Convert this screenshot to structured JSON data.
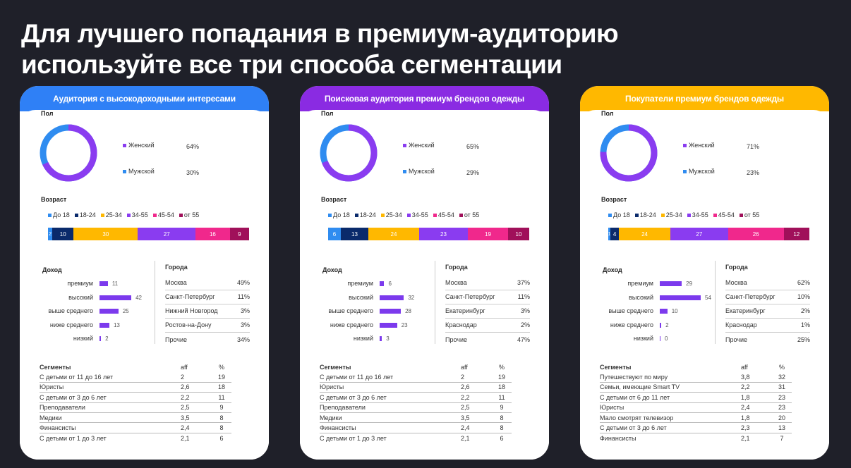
{
  "title": {
    "line1": "Для лучшего попадания в премиум-аудиторию",
    "line2": "используйте все три способа сегментации"
  },
  "colors": {
    "blue": "#2f80f6",
    "purple": "#8a2be2",
    "orange": "#ffb800",
    "navy": "#0a2a6b",
    "pink": "#f0288c",
    "crimson": "#a0105a",
    "light_blue": "#2f8cf0"
  },
  "labels": {
    "gender": "Пол",
    "age": "Возраст",
    "income": "Доход",
    "cities": "Города",
    "segments": "Сегменты",
    "aff": "aff",
    "percent": "%",
    "female": "Женский",
    "male": "Мужской",
    "age_groups": [
      "До 18",
      "18-24",
      "25-34",
      "34-55",
      "45-54",
      "от 55"
    ]
  },
  "cards": [
    {
      "header": "Аудитория с высокодоходными интересами",
      "header_color": "#2f80f6",
      "gender": {
        "female": "64%",
        "male": "30%",
        "female_share": 64,
        "male_share": 30
      },
      "age": [
        2,
        10,
        30,
        27,
        16,
        9
      ],
      "income": [
        {
          "label": "премиум",
          "value": 11
        },
        {
          "label": "высокий",
          "value": 42
        },
        {
          "label": "выше среднего",
          "value": 25
        },
        {
          "label": "ниже среднего",
          "value": 13
        },
        {
          "label": "низкий",
          "value": 2
        }
      ],
      "cities": [
        {
          "name": "Москва",
          "value": "49%"
        },
        {
          "name": "Санкт-Петербург",
          "value": "11%"
        },
        {
          "name": "Нижний Новгород",
          "value": "3%"
        },
        {
          "name": "Ростов-на-Дону",
          "value": "3%"
        },
        {
          "name": "Прочие",
          "value": "34%"
        }
      ],
      "segments": [
        {
          "name": "С детьми от 11 до 16 лет",
          "aff": "2",
          "pct": "19"
        },
        {
          "name": "Юристы",
          "aff": "2,6",
          "pct": "18"
        },
        {
          "name": "С детьми от 3 до 6 лет",
          "aff": "2,2",
          "pct": "11"
        },
        {
          "name": "Преподаватели",
          "aff": "2,5",
          "pct": "9"
        },
        {
          "name": "Медики",
          "aff": "3,5",
          "pct": "8"
        },
        {
          "name": "Финансисты",
          "aff": "2,4",
          "pct": "8"
        },
        {
          "name": "С детьми от 1 до 3 лет",
          "aff": "2,1",
          "pct": "6"
        }
      ]
    },
    {
      "header": "Поисковая аудитория премиум брендов одежды",
      "header_color": "#8a2be2",
      "gender": {
        "female": "65%",
        "male": "29%",
        "female_share": 65,
        "male_share": 29
      },
      "age": [
        6,
        13,
        24,
        23,
        19,
        10
      ],
      "income": [
        {
          "label": "премиум",
          "value": 6
        },
        {
          "label": "высокий",
          "value": 32
        },
        {
          "label": "выше среднего",
          "value": 28
        },
        {
          "label": "ниже среднего",
          "value": 23
        },
        {
          "label": "низкий",
          "value": 3
        }
      ],
      "cities": [
        {
          "name": "Москва",
          "value": "37%"
        },
        {
          "name": "Санкт-Петербург",
          "value": "11%"
        },
        {
          "name": "Екатеринбург",
          "value": "3%"
        },
        {
          "name": "Краснодар",
          "value": "2%"
        },
        {
          "name": "Прочие",
          "value": "47%"
        }
      ],
      "segments": [
        {
          "name": "С детьми от 11 до 16 лет",
          "aff": "2",
          "pct": "19"
        },
        {
          "name": "Юристы",
          "aff": "2,6",
          "pct": "18"
        },
        {
          "name": "С детьми от 3 до 6 лет",
          "aff": "2,2",
          "pct": "11"
        },
        {
          "name": "Преподаватели",
          "aff": "2,5",
          "pct": "9"
        },
        {
          "name": "Медики",
          "aff": "3,5",
          "pct": "8"
        },
        {
          "name": "Финансисты",
          "aff": "2,4",
          "pct": "8"
        },
        {
          "name": "С детьми от 1 до 3 лет",
          "aff": "2,1",
          "pct": "6"
        }
      ]
    },
    {
      "header": "Покупатели премиум брендов одежды",
      "header_color": "#ffb800",
      "gender": {
        "female": "71%",
        "male": "23%",
        "female_share": 71,
        "male_share": 23
      },
      "age": [
        1,
        4,
        24,
        27,
        26,
        12
      ],
      "income": [
        {
          "label": "премиум",
          "value": 29
        },
        {
          "label": "высокий",
          "value": 54
        },
        {
          "label": "выше среднего",
          "value": 10
        },
        {
          "label": "ниже среднего",
          "value": 2
        },
        {
          "label": "низкий",
          "value": 0
        }
      ],
      "cities": [
        {
          "name": "Москва",
          "value": "62%"
        },
        {
          "name": "Санкт-Петербург",
          "value": "10%"
        },
        {
          "name": "Екатеринбург",
          "value": "2%"
        },
        {
          "name": "Краснодар",
          "value": "1%"
        },
        {
          "name": "Прочие",
          "value": "25%"
        }
      ],
      "segments": [
        {
          "name": "Путешествуют по миру",
          "aff": "3,8",
          "pct": "32"
        },
        {
          "name": "Семьи, имеющие Smart TV",
          "aff": "2,2",
          "pct": "31"
        },
        {
          "name": "С детьми от 6 до 11 лет",
          "aff": "1,8",
          "pct": "23"
        },
        {
          "name": "Юристы",
          "aff": "2,4",
          "pct": "23"
        },
        {
          "name": "Мало смотрят телевизор",
          "aff": "1,8",
          "pct": "20"
        },
        {
          "name": "С детьми от 3 до 6 лет",
          "aff": "2,3",
          "pct": "13"
        },
        {
          "name": "Финансисты",
          "aff": "2,1",
          "pct": "7"
        }
      ]
    }
  ]
}
